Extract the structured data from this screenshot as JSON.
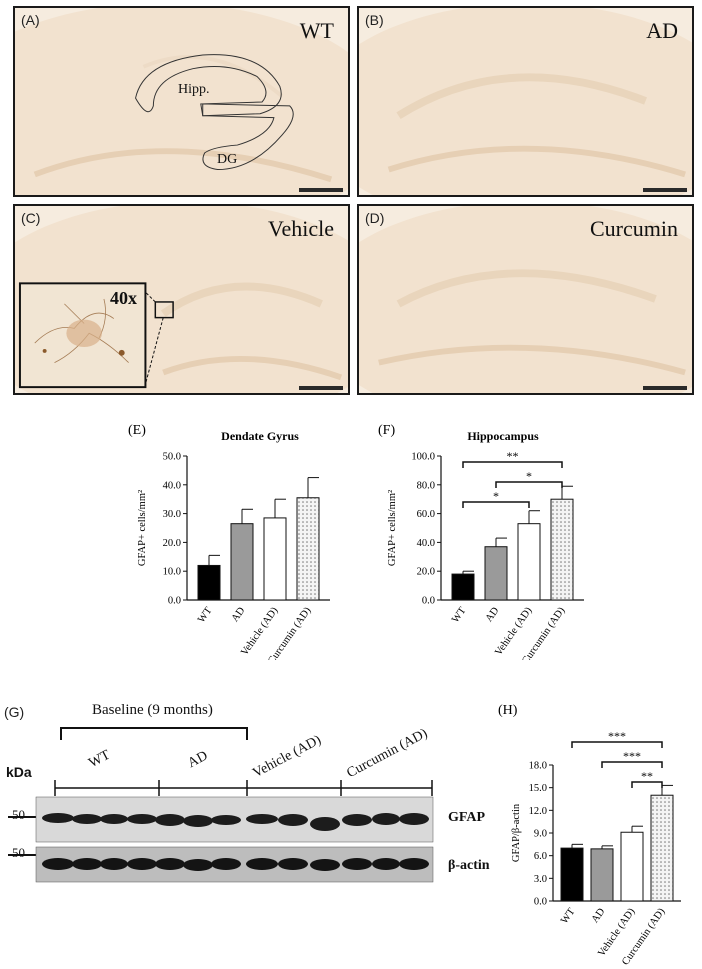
{
  "panels": {
    "A": {
      "label": "(A)",
      "title": "WT",
      "region1": "Hipp.",
      "region2": "DG"
    },
    "B": {
      "label": "(B)",
      "title": "AD"
    },
    "C": {
      "label": "(C)",
      "title": "Vehicle",
      "inset": "40x"
    },
    "D": {
      "label": "(D)",
      "title": "Curcumin"
    }
  },
  "colors": {
    "tissue_bg": "#f6ecdf",
    "tissue_dark": "#e8d2b8",
    "wt_bar": "#000000",
    "ad_bar": "#9a9a9a",
    "vehicle_bar": "#ffffff",
    "curcumin_bar": "#d9d9d9"
  },
  "chart_data": [
    {
      "id": "E",
      "panel_label": "(E)",
      "type": "bar",
      "title": "Dendate Gyrus",
      "ylabel": "GFAP+ cells/mm²",
      "categories": [
        "WT",
        "AD",
        "Vehicle (AD)",
        "Curcumin (AD)"
      ],
      "values": [
        12.0,
        26.5,
        28.5,
        35.5
      ],
      "errors": [
        3.5,
        5.0,
        6.5,
        7.0
      ],
      "ylim": [
        0,
        50
      ],
      "yticks": [
        "0.0",
        "10.0",
        "20.0",
        "30.0",
        "40.0",
        "50.0"
      ],
      "significance": []
    },
    {
      "id": "F",
      "panel_label": "(F)",
      "type": "bar",
      "title": "Hippocampus",
      "ylabel": "GFAP+ cells/mm²",
      "categories": [
        "WT",
        "AD",
        "Vehicle (AD)",
        "Curcumin (AD)"
      ],
      "values": [
        18.0,
        37.0,
        53.0,
        70.0
      ],
      "errors": [
        2.0,
        6.0,
        9.0,
        9.0
      ],
      "ylim": [
        0,
        100
      ],
      "yticks": [
        "0.0",
        "20.0",
        "40.0",
        "60.0",
        "80.0",
        "100.0"
      ],
      "significance": [
        {
          "from": 0,
          "to": 3,
          "label": "**"
        },
        {
          "from": 1,
          "to": 3,
          "label": "*"
        },
        {
          "from": 0,
          "to": 2,
          "label": "*"
        }
      ]
    },
    {
      "id": "H",
      "panel_label": "(H)",
      "type": "bar",
      "title": "",
      "ylabel": "GFAP/β-actin",
      "categories": [
        "WT",
        "AD",
        "Vehicle (AD)",
        "Curcumin (AD)"
      ],
      "values": [
        7.0,
        6.9,
        9.1,
        14.0
      ],
      "errors": [
        0.5,
        0.4,
        0.8,
        1.3
      ],
      "ylim": [
        0,
        18
      ],
      "yticks": [
        "0.0",
        "3.0",
        "6.0",
        "9.0",
        "12.0",
        "15.0",
        "18.0"
      ],
      "significance": [
        {
          "from": 0,
          "to": 3,
          "label": "***"
        },
        {
          "from": 1,
          "to": 3,
          "label": "***"
        },
        {
          "from": 2,
          "to": 3,
          "label": "**"
        }
      ]
    }
  ],
  "western": {
    "panel_label": "(G)",
    "baseline": "Baseline (9 months)",
    "kda": "kDa",
    "mw": "50",
    "groups": [
      "WT",
      "AD",
      "Vehicle (AD)",
      "Curcumin (AD)"
    ],
    "bands": [
      "GFAP",
      "β-actin"
    ]
  }
}
